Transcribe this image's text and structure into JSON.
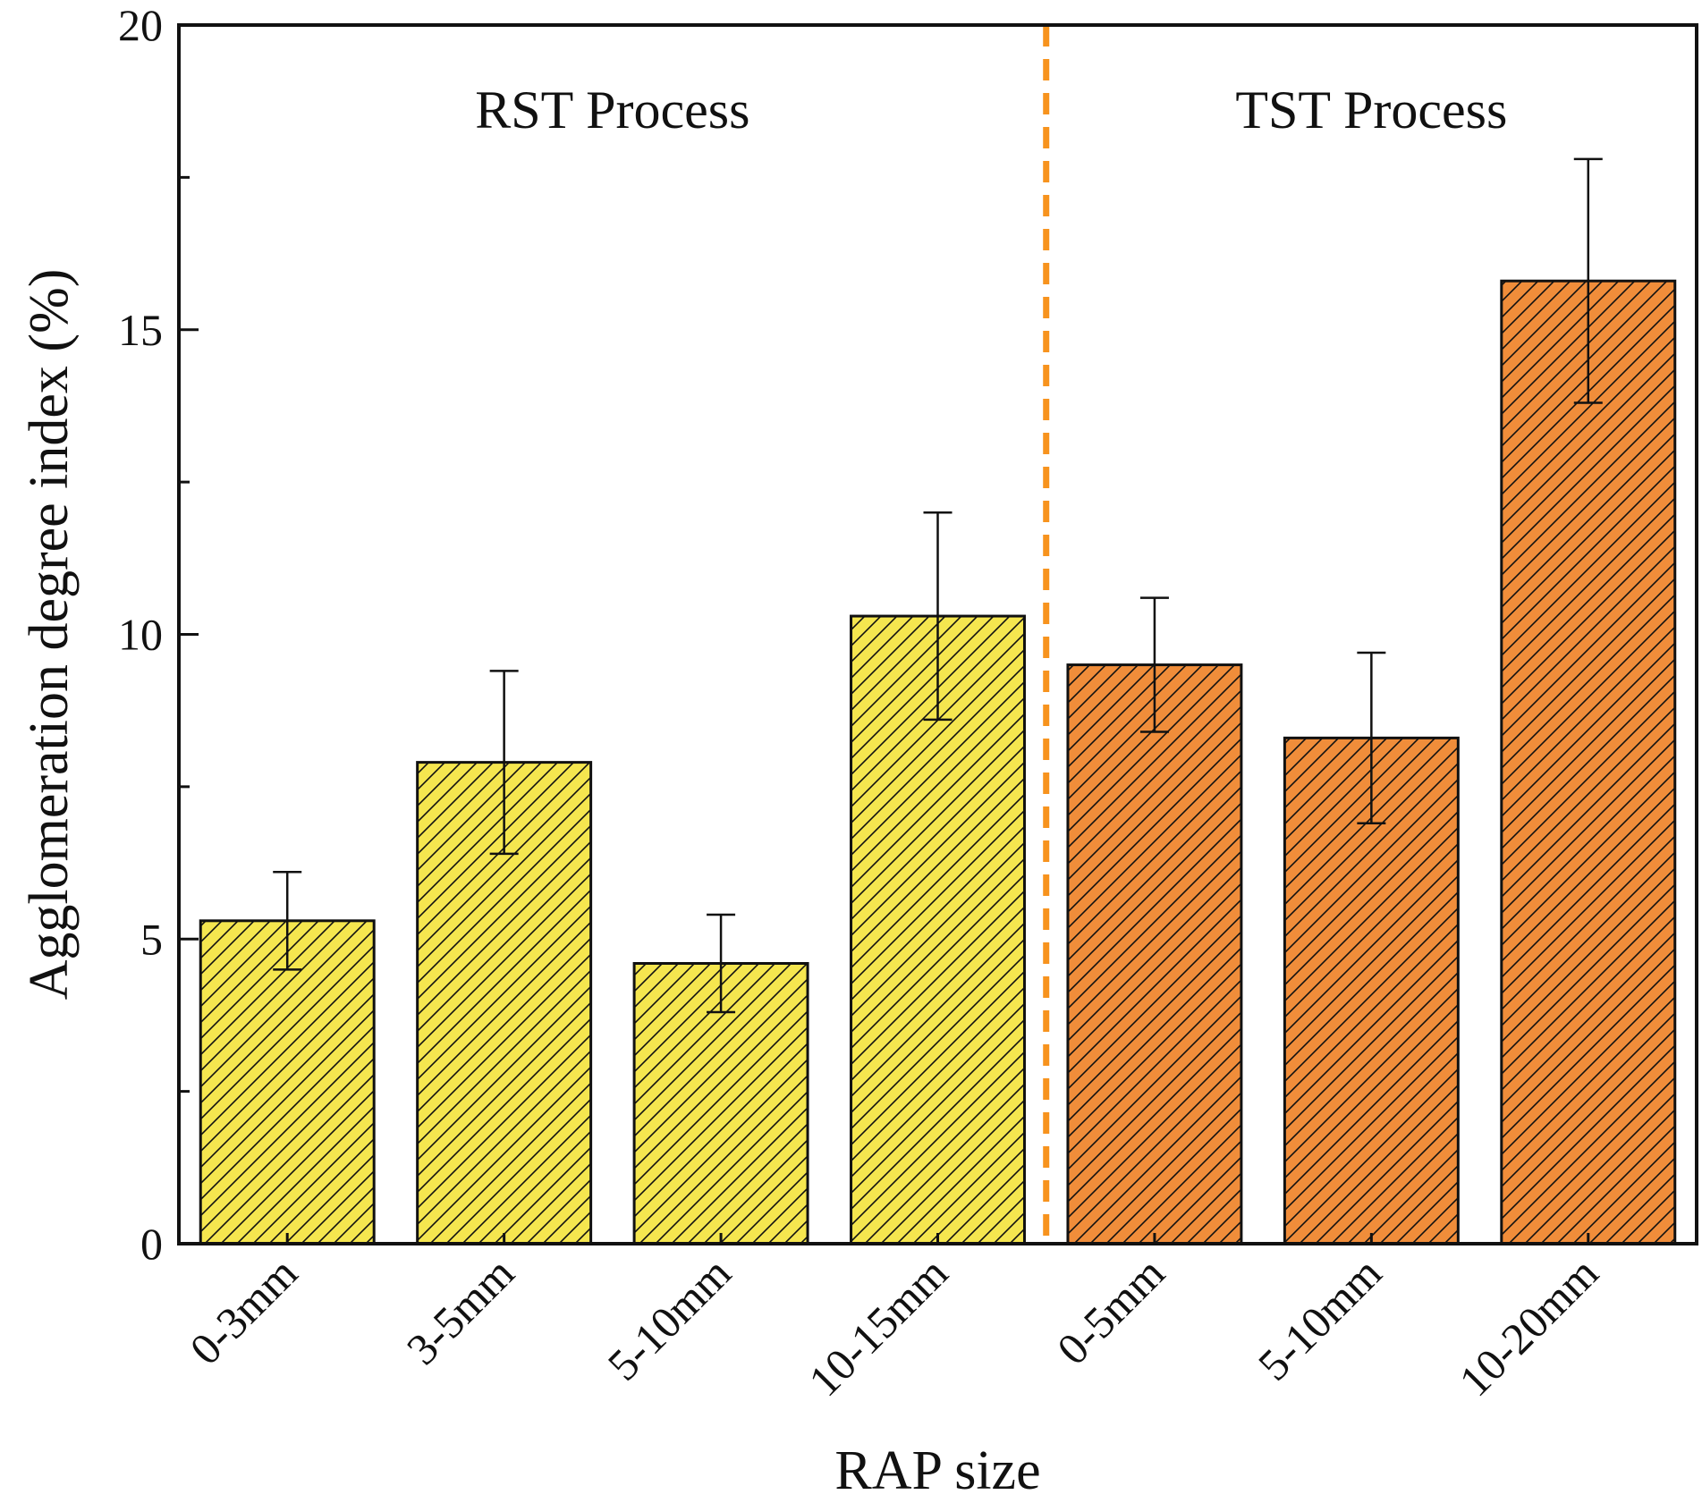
{
  "chart_data": {
    "type": "bar",
    "title": "",
    "xlabel": "RAP size",
    "ylabel": "Agglomeration degree index (%)",
    "ylim": [
      0,
      20
    ],
    "yticks": [
      0,
      5,
      10,
      15,
      20
    ],
    "grid": false,
    "groups": [
      {
        "name": "RST Process",
        "color": "#f5e64f",
        "categories": [
          "0-3mm",
          "3-5mm",
          "5-10mm",
          "10-15mm"
        ]
      },
      {
        "name": "TST Process",
        "color": "#f08d3a",
        "categories": [
          "0-5mm",
          "5-10mm",
          "10-20mm"
        ]
      }
    ],
    "categories": [
      "0-3mm",
      "3-5mm",
      "5-10mm",
      "10-15mm",
      "0-5mm",
      "5-10mm",
      "10-20mm"
    ],
    "values": [
      5.3,
      7.9,
      4.6,
      10.3,
      9.5,
      8.3,
      15.8
    ],
    "errors": [
      0.8,
      1.5,
      0.8,
      1.7,
      1.1,
      1.4,
      2.0
    ],
    "bar_groups": [
      0,
      0,
      0,
      0,
      1,
      1,
      1
    ],
    "separator_between_index": 3,
    "separator_color": "#f7931e",
    "hatch": "diagonal"
  }
}
